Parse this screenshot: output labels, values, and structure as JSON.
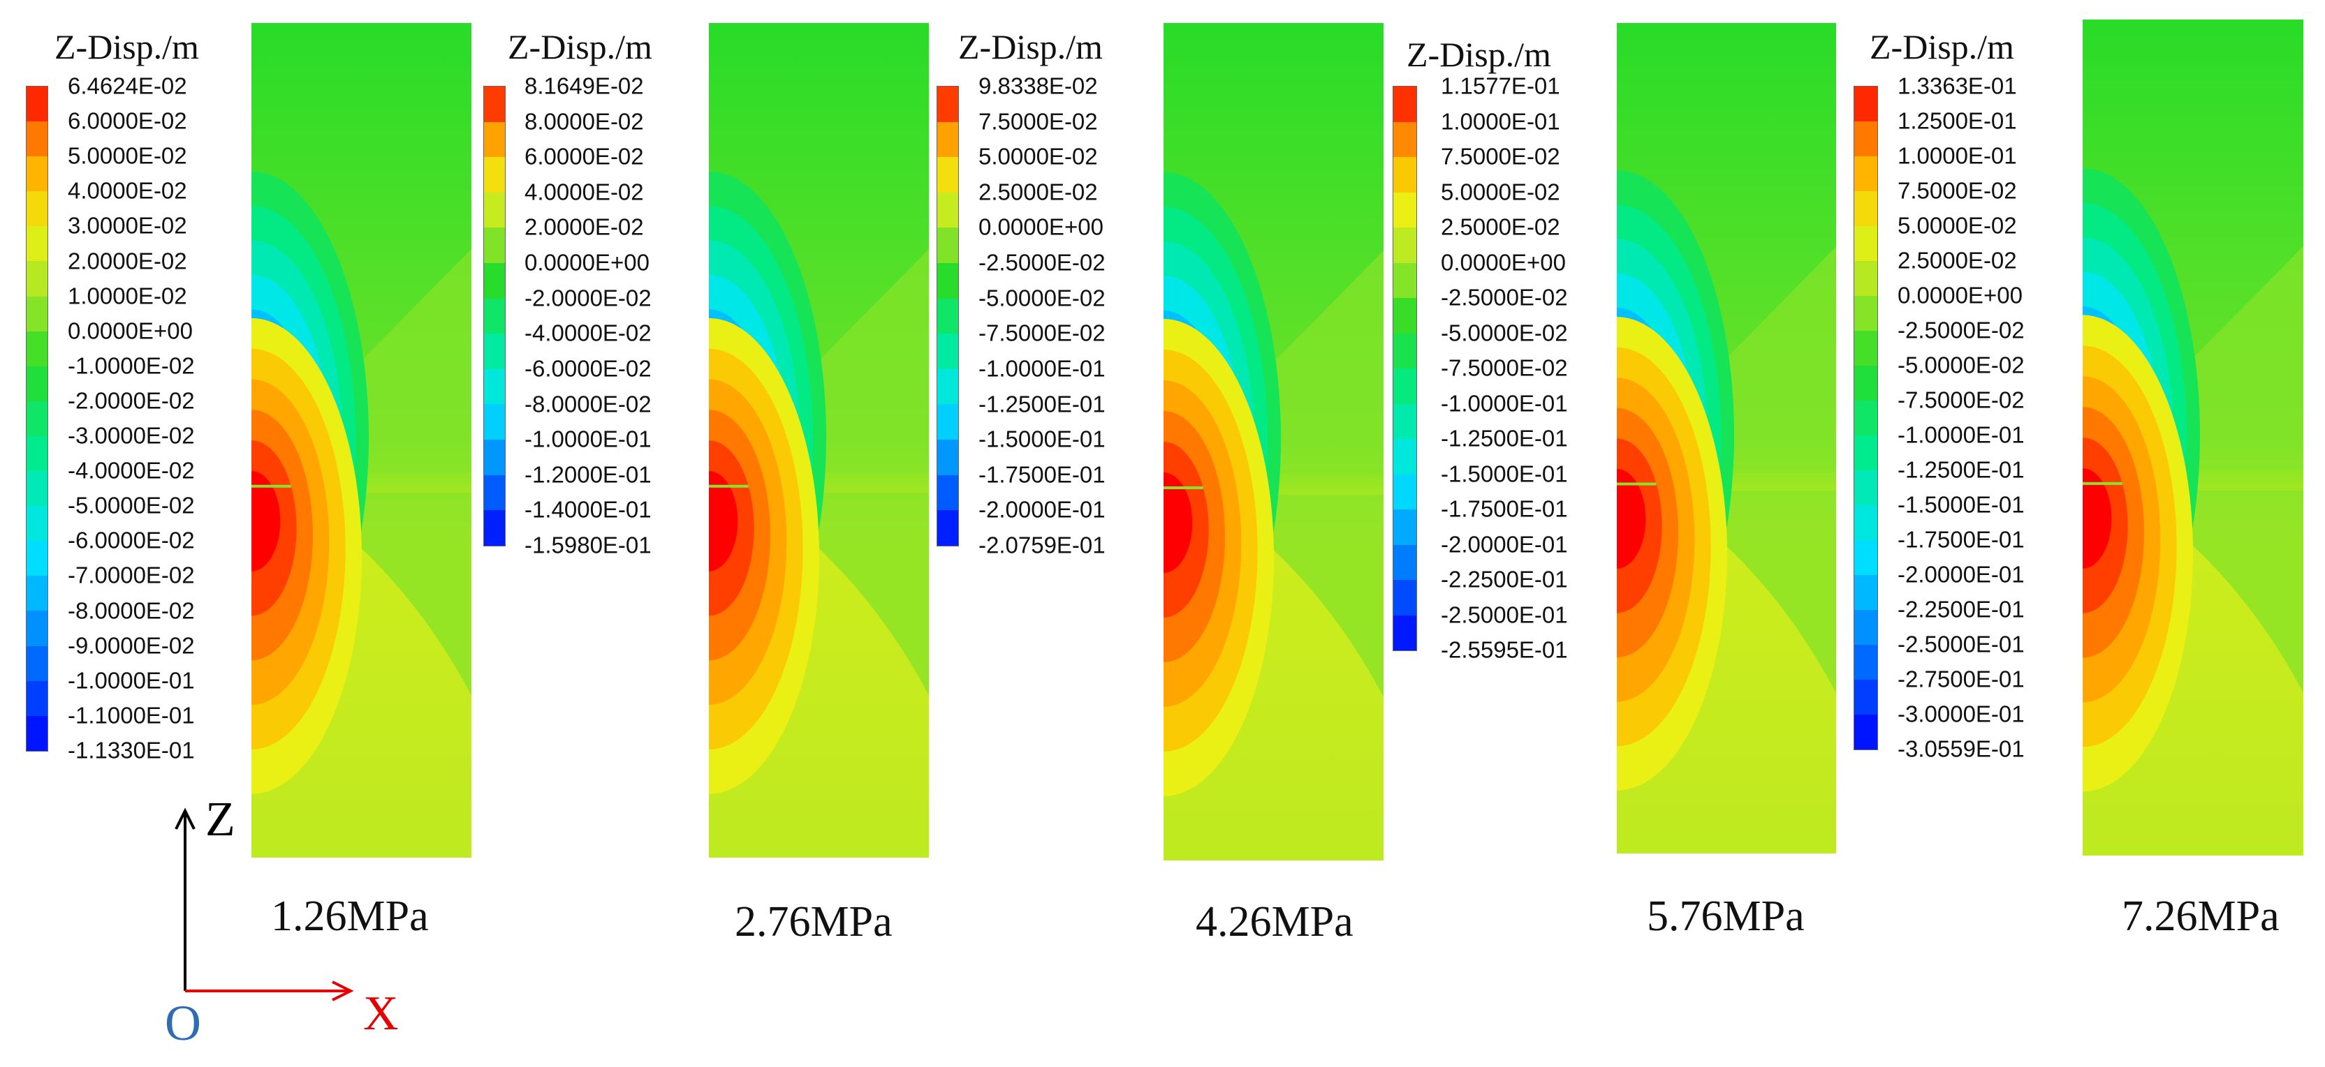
{
  "legend_title": "Z-Disp./m",
  "panels": [
    {
      "pressure": "1.26MPa",
      "legend_ticks": [
        "6.4624E-02",
        "6.0000E-02",
        "5.0000E-02",
        "4.0000E-02",
        "3.0000E-02",
        "2.0000E-02",
        "1.0000E-02",
        "0.0000E+00",
        "-1.0000E-02",
        "-2.0000E-02",
        "-3.0000E-02",
        "-4.0000E-02",
        "-5.0000E-02",
        "-6.0000E-02",
        "-7.0000E-02",
        "-8.0000E-02",
        "-9.0000E-02",
        "-1.0000E-01",
        "-1.1000E-01",
        "-1.1330E-01"
      ]
    },
    {
      "pressure": "2.76MPa",
      "legend_ticks": [
        "8.1649E-02",
        "8.0000E-02",
        "6.0000E-02",
        "4.0000E-02",
        "2.0000E-02",
        "0.0000E+00",
        "-2.0000E-02",
        "-4.0000E-02",
        "-6.0000E-02",
        "-8.0000E-02",
        "-1.0000E-01",
        "-1.2000E-01",
        "-1.4000E-01",
        "-1.5980E-01"
      ]
    },
    {
      "pressure": "4.26MPa",
      "legend_ticks": [
        "9.8338E-02",
        "7.5000E-02",
        "5.0000E-02",
        "2.5000E-02",
        "0.0000E+00",
        "-2.5000E-02",
        "-5.0000E-02",
        "-7.5000E-02",
        "-1.0000E-01",
        "-1.2500E-01",
        "-1.5000E-01",
        "-1.7500E-01",
        "-2.0000E-01",
        "-2.0759E-01"
      ]
    },
    {
      "pressure": "5.76MPa",
      "legend_ticks": [
        "1.1577E-01",
        "1.0000E-01",
        "7.5000E-02",
        "5.0000E-02",
        "2.5000E-02",
        "0.0000E+00",
        "-2.5000E-02",
        "-5.0000E-02",
        "-7.5000E-02",
        "-1.0000E-01",
        "-1.2500E-01",
        "-1.5000E-01",
        "-1.7500E-01",
        "-2.0000E-01",
        "-2.2500E-01",
        "-2.5000E-01",
        "-2.5595E-01"
      ]
    },
    {
      "pressure": "7.26MPa",
      "legend_ticks": [
        "1.3363E-01",
        "1.2500E-01",
        "1.0000E-01",
        "7.5000E-02",
        "5.0000E-02",
        "2.5000E-02",
        "0.0000E+00",
        "-2.5000E-02",
        "-5.0000E-02",
        "-7.5000E-02",
        "-1.0000E-01",
        "-1.2500E-01",
        "-1.5000E-01",
        "-1.7500E-01",
        "-2.0000E-01",
        "-2.2500E-01",
        "-2.5000E-01",
        "-2.7500E-01",
        "-3.0000E-01",
        "-3.0559E-01"
      ]
    }
  ],
  "axes": {
    "z_label": "Z",
    "x_label": "X",
    "origin_label": "O",
    "z_color": "#000000",
    "x_color": "#e60000",
    "origin_color": "#2e6db4"
  },
  "colors": {
    "max": "#ff0000",
    "zero": "#9be62a",
    "min": "#0000ff"
  }
}
